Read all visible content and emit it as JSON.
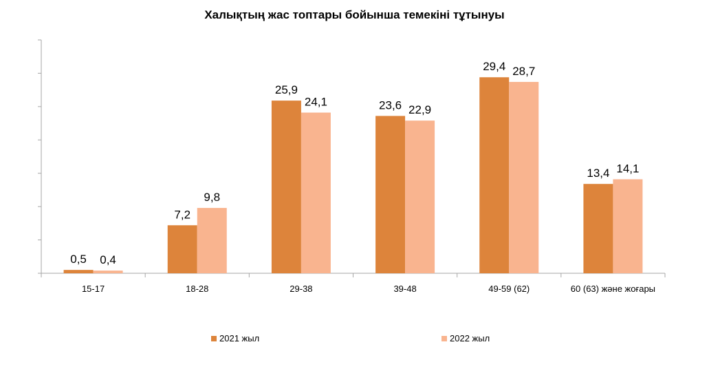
{
  "chart_data": {
    "type": "bar",
    "title": "Халықтың жас топтары бойынша темекіні тұтынуы",
    "categories": [
      "15-17",
      "18-28",
      "29-38",
      "39-48",
      "49-59 (62)",
      "60 (63) және жоғары"
    ],
    "series": [
      {
        "name": "2021 жыл",
        "values": [
          0.5,
          7.2,
          25.9,
          23.6,
          29.4,
          13.4
        ],
        "labels": [
          "0,5",
          "7,2",
          "25,9",
          "23,6",
          "29,4",
          "13,4"
        ],
        "color": "#dd843b"
      },
      {
        "name": "2022 жыл",
        "values": [
          0.4,
          9.8,
          24.1,
          22.9,
          28.7,
          14.1
        ],
        "labels": [
          "0,4",
          "9,8",
          "24,1",
          "22,9",
          "28,7",
          "14,1"
        ],
        "color": "#f9b48f"
      }
    ],
    "ylim": [
      0,
      35
    ],
    "y_tick_step": 5,
    "y_tick_labels_visible": false,
    "grid": false,
    "legend_position": "bottom",
    "axis_color": "#a6a6a6"
  }
}
